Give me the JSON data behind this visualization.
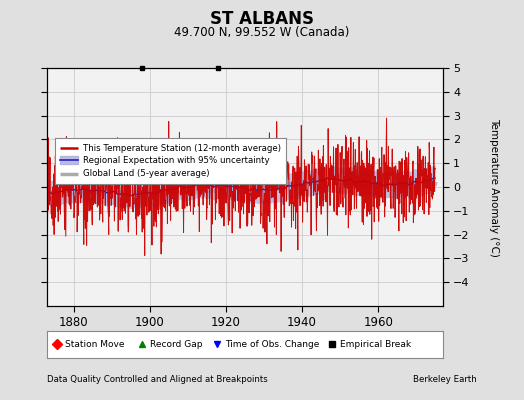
{
  "title": "ST ALBANS",
  "subtitle": "49.700 N, 99.552 W (Canada)",
  "ylabel": "Temperature Anomaly (°C)",
  "xlabel_note": "Data Quality Controlled and Aligned at Breakpoints",
  "credit": "Berkeley Earth",
  "xlim": [
    1873,
    1977
  ],
  "ylim": [
    -5,
    5
  ],
  "yticks": [
    -4,
    -3,
    -2,
    -1,
    0,
    1,
    2,
    3,
    4,
    5
  ],
  "xticks": [
    1880,
    1900,
    1920,
    1940,
    1960
  ],
  "bg_color": "#e0e0e0",
  "plot_bg_color": "#f2f2f2",
  "station_color": "#cc0000",
  "regional_color": "#2222bb",
  "regional_fill_color": "#aaaadd",
  "global_color": "#aaaaaa",
  "seed": 42
}
